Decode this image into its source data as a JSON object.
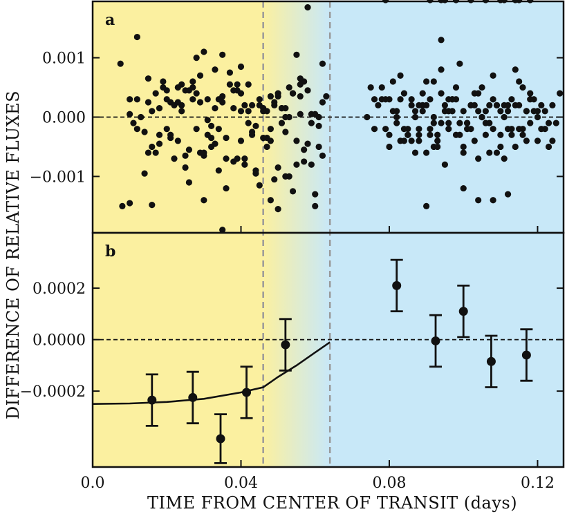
{
  "chart_data": {
    "type": "scatter",
    "xlabel": "TIME FROM CENTER OF TRANSIT (days)",
    "ylabel": "DIFFERENCE OF RELATIVE FLUXES",
    "xlim": [
      0.0,
      0.127
    ],
    "x_ticks": [
      "0.0",
      "0.04",
      "0.08",
      "0.12"
    ],
    "x_tick_values": [
      0.0,
      0.04,
      0.08,
      0.12
    ],
    "shading": {
      "in_transit_color": "#fbf0a0",
      "out_of_transit_color": "#c8e8f8",
      "ingress_start": 0.046,
      "ingress_end": 0.064
    },
    "panels": [
      {
        "label": "a",
        "ylim": [
          -0.00195,
          0.00195
        ],
        "y_ticks": [
          "0.001",
          "0.000",
          "−0.001"
        ],
        "y_tick_values": [
          0.001,
          0.0,
          -0.001
        ],
        "reference_line": 0.0,
        "points_x": [
          0.0075,
          0.01,
          0.015,
          0.008,
          0.012,
          0.016,
          0.025,
          0.02,
          0.018,
          0.03,
          0.035,
          0.032,
          0.028,
          0.04,
          0.038,
          0.042,
          0.045,
          0.048,
          0.05,
          0.052,
          0.055,
          0.057,
          0.06,
          0.062,
          0.058,
          0.062,
          0.054,
          0.035,
          0.03,
          0.01,
          0.014,
          0.017,
          0.021,
          0.024,
          0.026,
          0.029,
          0.031,
          0.033,
          0.036,
          0.039,
          0.041,
          0.043,
          0.046,
          0.047,
          0.049,
          0.051,
          0.053,
          0.056,
          0.059,
          0.061,
          0.012,
          0.019,
          0.023,
          0.027,
          0.034,
          0.037,
          0.044,
          0.048,
          0.052,
          0.056,
          0.06,
          0.016,
          0.022,
          0.029,
          0.033,
          0.04,
          0.045,
          0.051,
          0.057,
          0.02,
          0.025,
          0.031,
          0.036,
          0.042,
          0.049,
          0.053,
          0.018,
          0.024,
          0.03,
          0.038,
          0.044,
          0.05,
          0.055,
          0.059,
          0.015,
          0.023,
          0.028,
          0.035,
          0.041,
          0.047,
          0.054,
          0.062,
          0.011,
          0.017,
          0.026,
          0.034,
          0.039,
          0.046,
          0.052,
          0.058,
          0.013,
          0.021,
          0.027,
          0.032,
          0.043,
          0.048,
          0.056,
          0.061,
          0.019,
          0.025,
          0.033,
          0.04,
          0.045,
          0.05,
          0.054,
          0.06,
          0.014,
          0.022,
          0.029,
          0.037,
          0.042,
          0.049,
          0.057,
          0.063,
          0.016,
          0.024,
          0.031,
          0.038,
          0.044,
          0.051,
          0.058,
          0.012,
          0.02,
          0.028,
          0.036,
          0.041,
          0.047,
          0.053,
          0.059,
          0.023,
          0.03,
          0.035,
          0.043,
          0.05,
          0.055,
          0.01,
          0.018,
          0.027,
          0.032,
          0.039,
          0.046,
          0.052,
          0.061,
          0.015,
          0.021,
          0.026,
          0.034,
          0.04,
          0.048,
          0.056,
          0.074,
          0.076,
          0.078,
          0.08,
          0.082,
          0.084,
          0.086,
          0.088,
          0.09,
          0.092,
          0.094,
          0.096,
          0.098,
          0.1,
          0.102,
          0.104,
          0.106,
          0.108,
          0.11,
          0.112,
          0.114,
          0.116,
          0.118,
          0.12,
          0.122,
          0.124,
          0.126,
          0.075,
          0.079,
          0.083,
          0.087,
          0.091,
          0.095,
          0.099,
          0.103,
          0.107,
          0.111,
          0.115,
          0.119,
          0.123,
          0.077,
          0.081,
          0.085,
          0.089,
          0.093,
          0.097,
          0.101,
          0.105,
          0.109,
          0.113,
          0.117,
          0.121,
          0.125,
          0.076,
          0.08,
          0.084,
          0.088,
          0.092,
          0.096,
          0.1,
          0.104,
          0.108,
          0.112,
          0.116,
          0.12,
          0.124,
          0.078,
          0.082,
          0.086,
          0.09,
          0.094,
          0.098,
          0.102,
          0.106,
          0.11,
          0.114,
          0.118,
          0.122,
          0.079,
          0.083,
          0.087,
          0.091,
          0.095,
          0.099,
          0.103,
          0.107,
          0.111,
          0.115,
          0.119,
          0.123,
          0.081,
          0.085,
          0.089,
          0.093,
          0.097,
          0.101,
          0.105,
          0.109,
          0.113,
          0.117,
          0.121,
          0.08,
          0.084,
          0.088,
          0.092,
          0.096,
          0.1,
          0.104,
          0.108,
          0.112,
          0.116,
          0.12,
          0.082,
          0.086,
          0.09,
          0.094,
          0.098,
          0.102,
          0.106,
          0.11,
          0.114,
          0.118,
          0.083,
          0.087,
          0.091,
          0.095,
          0.099,
          0.103,
          0.107,
          0.111,
          0.115,
          0.085,
          0.089,
          0.093,
          0.097,
          0.101,
          0.105,
          0.109,
          0.113,
          0.117,
          0.088,
          0.092,
          0.096,
          0.1,
          0.104,
          0.108,
          0.112,
          0.09,
          0.094,
          0.098,
          0.102,
          0.106,
          0.11,
          0.114,
          0.118,
          0.079,
          0.091,
          0.094,
          0.095,
          0.111,
          0.115
        ],
        "points_y": [
          0.0009,
          -0.00145,
          0.00065,
          -0.0015,
          0.00135,
          -0.00148,
          0.00045,
          0.0003,
          0.00015,
          0.0011,
          0.00105,
          -0.00035,
          0.001,
          0.00085,
          -0.00075,
          0.0001,
          0.0002,
          -0.0002,
          -0.00155,
          0.0,
          0.00105,
          0.0006,
          -0.0015,
          0.0009,
          0.00185,
          -0.00065,
          0.0004,
          -0.0019,
          -0.0014,
          0.0003,
          -0.00095,
          -0.0006,
          0.00025,
          0.00055,
          -0.0011,
          0.0007,
          -5e-05,
          0.0008,
          -0.0012,
          0.00045,
          -0.0007,
          -0.0003,
          0.00015,
          -0.0005,
          0.0002,
          -0.0001,
          -0.001,
          0.00065,
          -0.0008,
          0.0,
          -0.0002,
          0.0006,
          -0.0004,
          0.0005,
          -0.0009,
          0.00075,
          -0.00015,
          0.00035,
          -0.00025,
          5e-05,
          -0.0013,
          0.0001,
          -0.0007,
          0.00025,
          -0.00045,
          0.0004,
          -0.00115,
          0.00015,
          -0.00055,
          0.00045,
          -0.00085,
          0.0003,
          -0.00035,
          0.00055,
          -0.00105,
          0.0,
          -0.0003,
          0.0002,
          -0.00065,
          0.00015,
          -0.00095,
          0.00035,
          -0.0004,
          5e-05,
          -0.0006,
          0.0005,
          -0.0002,
          0.00025,
          -0.0008,
          0.0001,
          -0.00125,
          0.00025,
          -0.0001,
          0.0004,
          -0.00055,
          0.0003,
          -0.0007,
          0.0001,
          -0.001,
          0.00045,
          0.0,
          -0.00035,
          0.0006,
          -0.0005,
          0.0002,
          -0.0014,
          0.00035,
          -0.00015,
          0.0005,
          -0.00065,
          0.00015,
          -0.0004,
          0.0003,
          -0.00085,
          0.0004,
          5e-05,
          -0.00025,
          0.0002,
          -0.0006,
          0.00055,
          -0.0001,
          0.00025,
          -0.00075,
          0.00035,
          -0.0005,
          0.0001,
          -0.0003,
          0.00045,
          -0.0009,
          0.00015,
          -0.00045,
          0.0003,
          -0.0002,
          0.0004,
          -0.0007,
          0.0002,
          -0.00035,
          0.0005,
          -0.0001,
          0.00025,
          -0.0006,
          0.00035,
          -0.00025,
          0.0004,
          -0.0008,
          5e-05,
          -0.00045,
          0.0003,
          -0.00015,
          0.00055,
          -0.00035,
          0.00015,
          -0.0005,
          0.00025,
          -0.0003,
          0.00045,
          -0.0002,
          0.0001,
          -0.0004,
          0.00055,
          0.0,
          -0.0002,
          0.0005,
          -0.0003,
          0.0001,
          -0.0002,
          0.0003,
          -0.0004,
          0.0006,
          -0.0005,
          0.0008,
          -0.0001,
          0.0005,
          -0.0006,
          0.0002,
          0.0004,
          -0.0003,
          0.0007,
          -0.0005,
          0.0001,
          0.0008,
          -0.0002,
          0.0003,
          -0.0004,
          0.0001,
          0.0002,
          0.0004,
          0.0005,
          -0.0002,
          0.0007,
          -0.0006,
          0.0003,
          -0.0008,
          0.0009,
          -0.0004,
          0.0002,
          -0.0007,
          0.0006,
          0.0001,
          -0.0001,
          0.0002,
          0.0006,
          -0.0003,
          0.0004,
          -0.0005,
          0.0001,
          -0.0002,
          0.0005,
          -0.0006,
          0.0003,
          -0.0004,
          0.0002,
          -0.0001,
          0.0003,
          -0.0005,
          0.0004,
          -0.0003,
          0.0006,
          -0.0002,
          0.0001,
          -0.0007,
          0.0003,
          -0.0002,
          0.0005,
          0.0,
          -0.0004,
          0.0003,
          -0.0001,
          0.0002,
          -0.0006,
          0.0004,
          -0.0003,
          0.0002,
          -0.0001,
          0.0001,
          -0.0005,
          0.0004,
          -0.0002,
          0.0003,
          -0.0004,
          0.0001,
          -0.0003,
          0.0002,
          -0.0001,
          0.0004,
          -0.0006,
          0.0002,
          -0.0002,
          0.0003,
          -0.0005,
          0.0001,
          -0.0003,
          0.0002,
          -0.0004,
          0.0003,
          -0.0001,
          0.0,
          0.0002,
          -0.0003,
          0.0001,
          -0.0002,
          0.0003,
          -0.0004,
          0.0002,
          -0.0001,
          0.0003,
          -0.0005,
          0.0001,
          -0.0002,
          0.0002,
          -0.0003,
          0.0001,
          0.0,
          -0.0004,
          0.0002,
          -0.0001,
          0.0003,
          -0.0002,
          0.0001,
          -0.0003,
          0.0002,
          -0.0001,
          0.0003,
          0.0,
          -0.0002,
          0.0001,
          -0.0003,
          0.0002,
          -0.0001,
          0.0,
          0.0002,
          -0.0002,
          0.0001,
          -0.0003,
          0.0003,
          -0.0001,
          0.0,
          0.0002,
          -0.0002,
          0.0001,
          -0.0002,
          0.0,
          0.0001,
          -0.0012,
          -0.0014,
          -0.0014,
          -0.0013,
          -0.0015,
          0.0013
        ]
      },
      {
        "label": "b",
        "ylim": [
          -0.000495,
          0.000415
        ],
        "y_ticks": [
          "0.0002",
          "0.0000",
          "−0.0002"
        ],
        "y_tick_values": [
          0.0002,
          0.0,
          -0.0002
        ],
        "reference_line": 0.0,
        "binned_points": {
          "x": [
            0.016,
            0.027,
            0.0345,
            0.0415,
            0.052,
            0.082,
            0.0925,
            0.1,
            0.1075,
            0.117
          ],
          "y": [
            -0.000235,
            -0.000225,
            -0.000385,
            -0.000205,
            -2e-05,
            0.00021,
            -5e-06,
            0.00011,
            -8.5e-05,
            -6e-05
          ],
          "err": [
            0.0001,
            0.0001,
            9.5e-05,
            0.0001,
            0.0001,
            0.0001,
            0.0001,
            0.0001,
            0.0001,
            0.0001
          ]
        },
        "model_curve": {
          "x": [
            0.0,
            0.01,
            0.02,
            0.03,
            0.04,
            0.046,
            0.05,
            0.055,
            0.06,
            0.064
          ],
          "y": [
            -0.00025,
            -0.000248,
            -0.000242,
            -0.00023,
            -0.000205,
            -0.000185,
            -0.000145,
            -0.0001,
            -5e-05,
            -1e-05
          ]
        }
      }
    ]
  }
}
